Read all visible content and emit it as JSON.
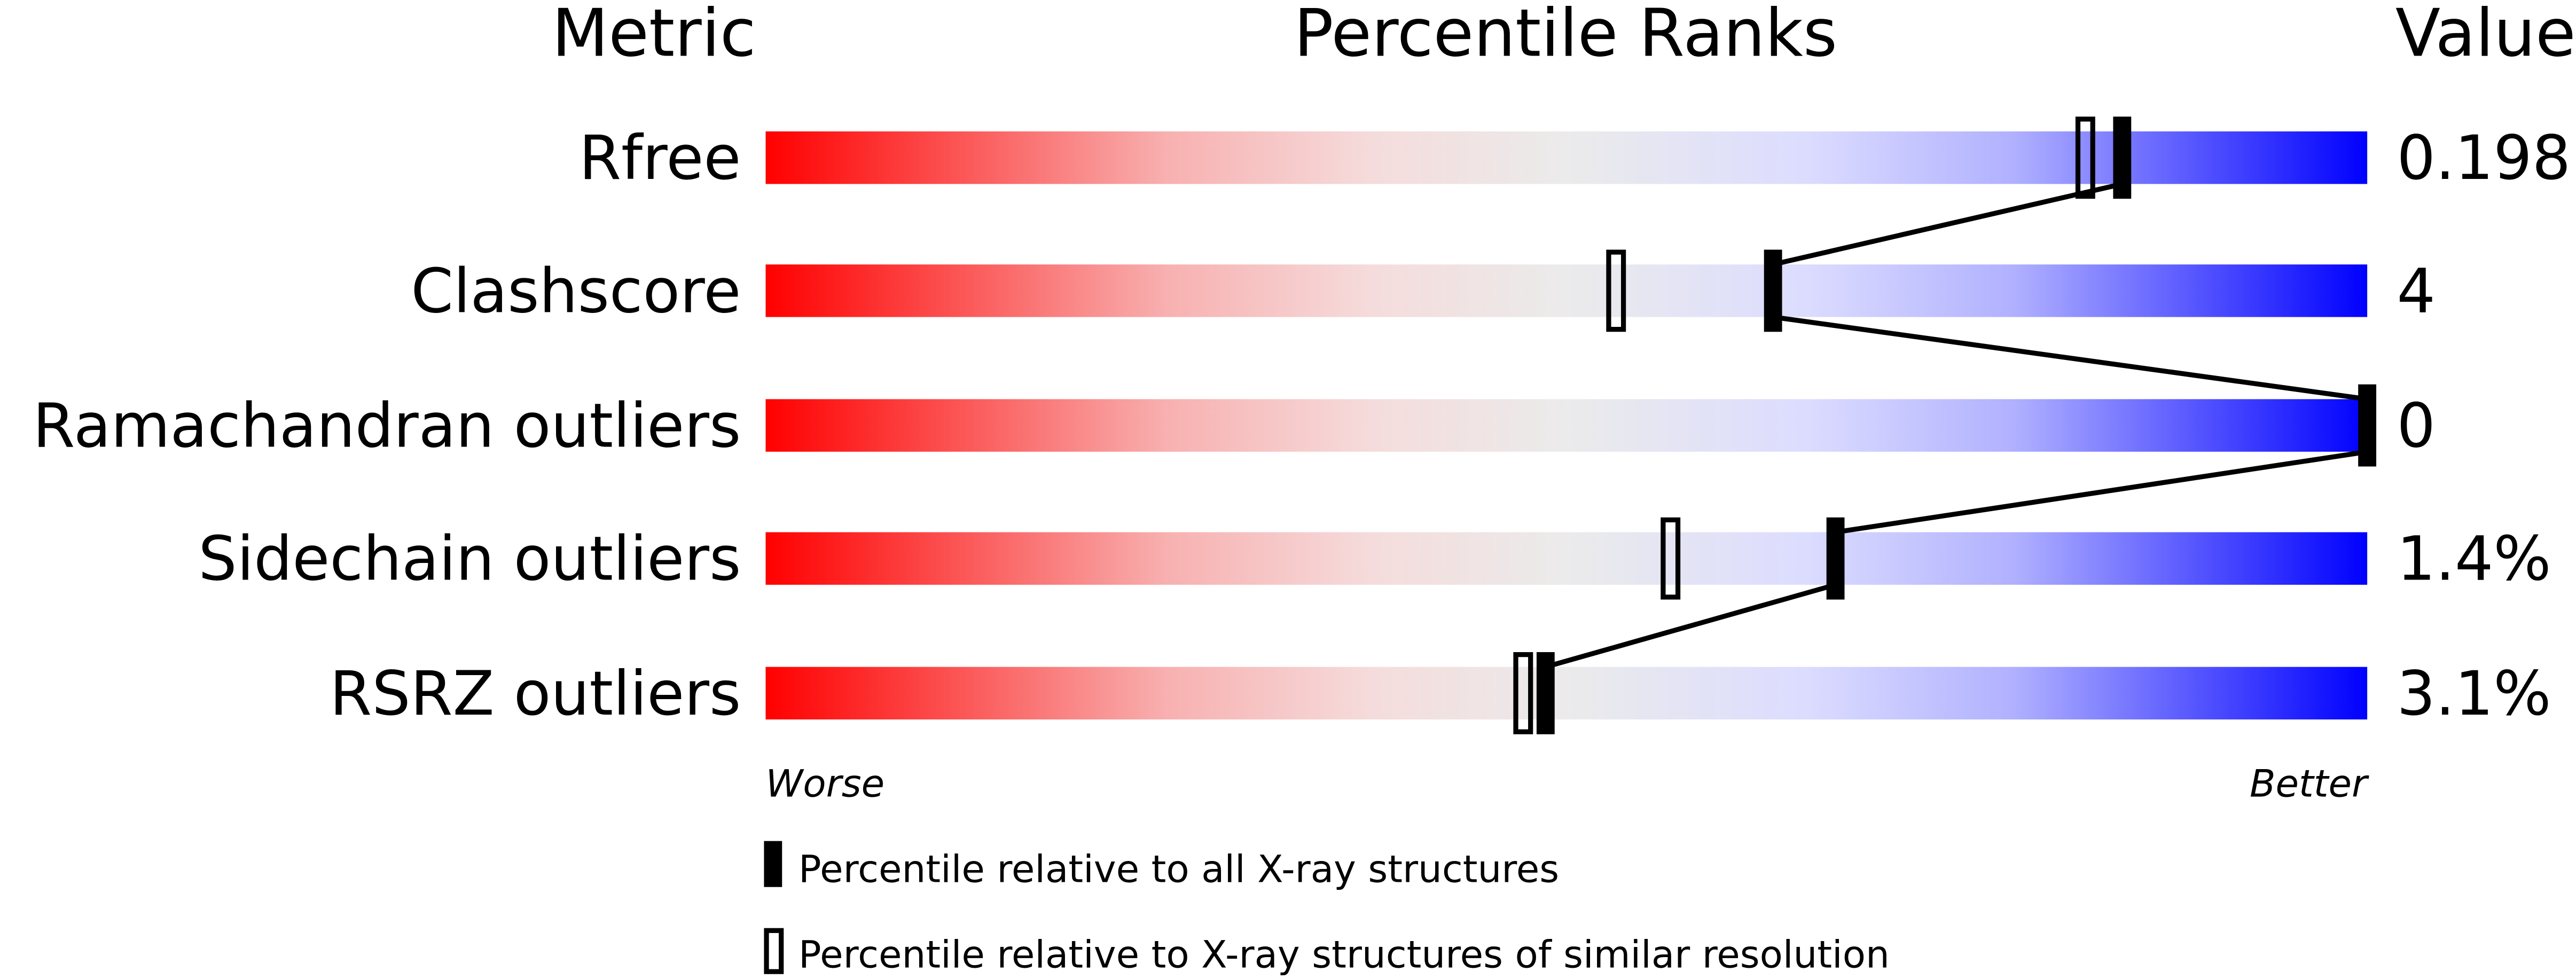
{
  "chart_data": {
    "type": "percentile-bar",
    "headers": {
      "metric": "Metric",
      "ranks": "Percentile Ranks",
      "value": "Value"
    },
    "xlim": [
      0,
      100
    ],
    "axis_notes": {
      "left": "Worse",
      "right": "Better"
    },
    "gradient_colors": [
      "#ff0000",
      "#f5dcdc",
      "#ebebeb",
      "#dcdcff",
      "#0000ff"
    ],
    "metrics": [
      {
        "name": "Rfree",
        "value": "0.198",
        "percentile_all": 84.7,
        "percentile_similar": 82.4
      },
      {
        "name": "Clashscore",
        "value": "4",
        "percentile_all": 62.9,
        "percentile_similar": 53.1
      },
      {
        "name": "Ramachandran outliers",
        "value": "0",
        "percentile_all": 100,
        "percentile_similar": null
      },
      {
        "name": "Sidechain outliers",
        "value": "1.4%",
        "percentile_all": 66.8,
        "percentile_similar": 56.5
      },
      {
        "name": "RSRZ outliers",
        "value": "3.1%",
        "percentile_all": 48.7,
        "percentile_similar": 47.3
      }
    ],
    "legend": [
      {
        "marker": "filled",
        "label": "Percentile relative to all X-ray structures"
      },
      {
        "marker": "open",
        "label": "Percentile relative to X-ray structures of similar resolution"
      }
    ]
  }
}
